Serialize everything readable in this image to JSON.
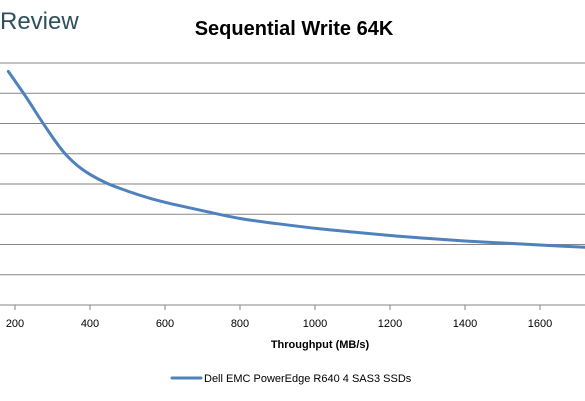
{
  "brand": {
    "label": "Review"
  },
  "chart_data": {
    "type": "line",
    "title": "Sequential Write 64K",
    "xlabel": "Throughput (MB/s)",
    "ylabel": "",
    "xlim": [
      160,
      1720
    ],
    "ylim": [
      0,
      8.6
    ],
    "x_ticks": [
      200,
      400,
      600,
      800,
      1000,
      1200,
      1400,
      1600
    ],
    "x_tick_labels": [
      "200",
      "400",
      "600",
      "800",
      "1000",
      "1200",
      "1400",
      "1600"
    ],
    "y_gridline_count": 8,
    "y_tick_labels_visible": false,
    "grid": "horizontal",
    "legend_position": "bottom",
    "series": [
      {
        "name": "Dell EMC PowerEdge R640 4 SAS3 SSDs",
        "color": "#4f81bd",
        "x": [
          182,
          230,
          280,
          330,
          380,
          440,
          500,
          560,
          620,
          700,
          800,
          900,
          1000,
          1100,
          1200,
          1300,
          1400,
          1500,
          1600,
          1720
        ],
        "y": [
          8.1,
          7.2,
          6.2,
          5.3,
          4.7,
          4.25,
          3.95,
          3.7,
          3.5,
          3.27,
          3.0,
          2.82,
          2.66,
          2.53,
          2.41,
          2.31,
          2.22,
          2.15,
          2.08,
          2.0
        ]
      }
    ]
  }
}
